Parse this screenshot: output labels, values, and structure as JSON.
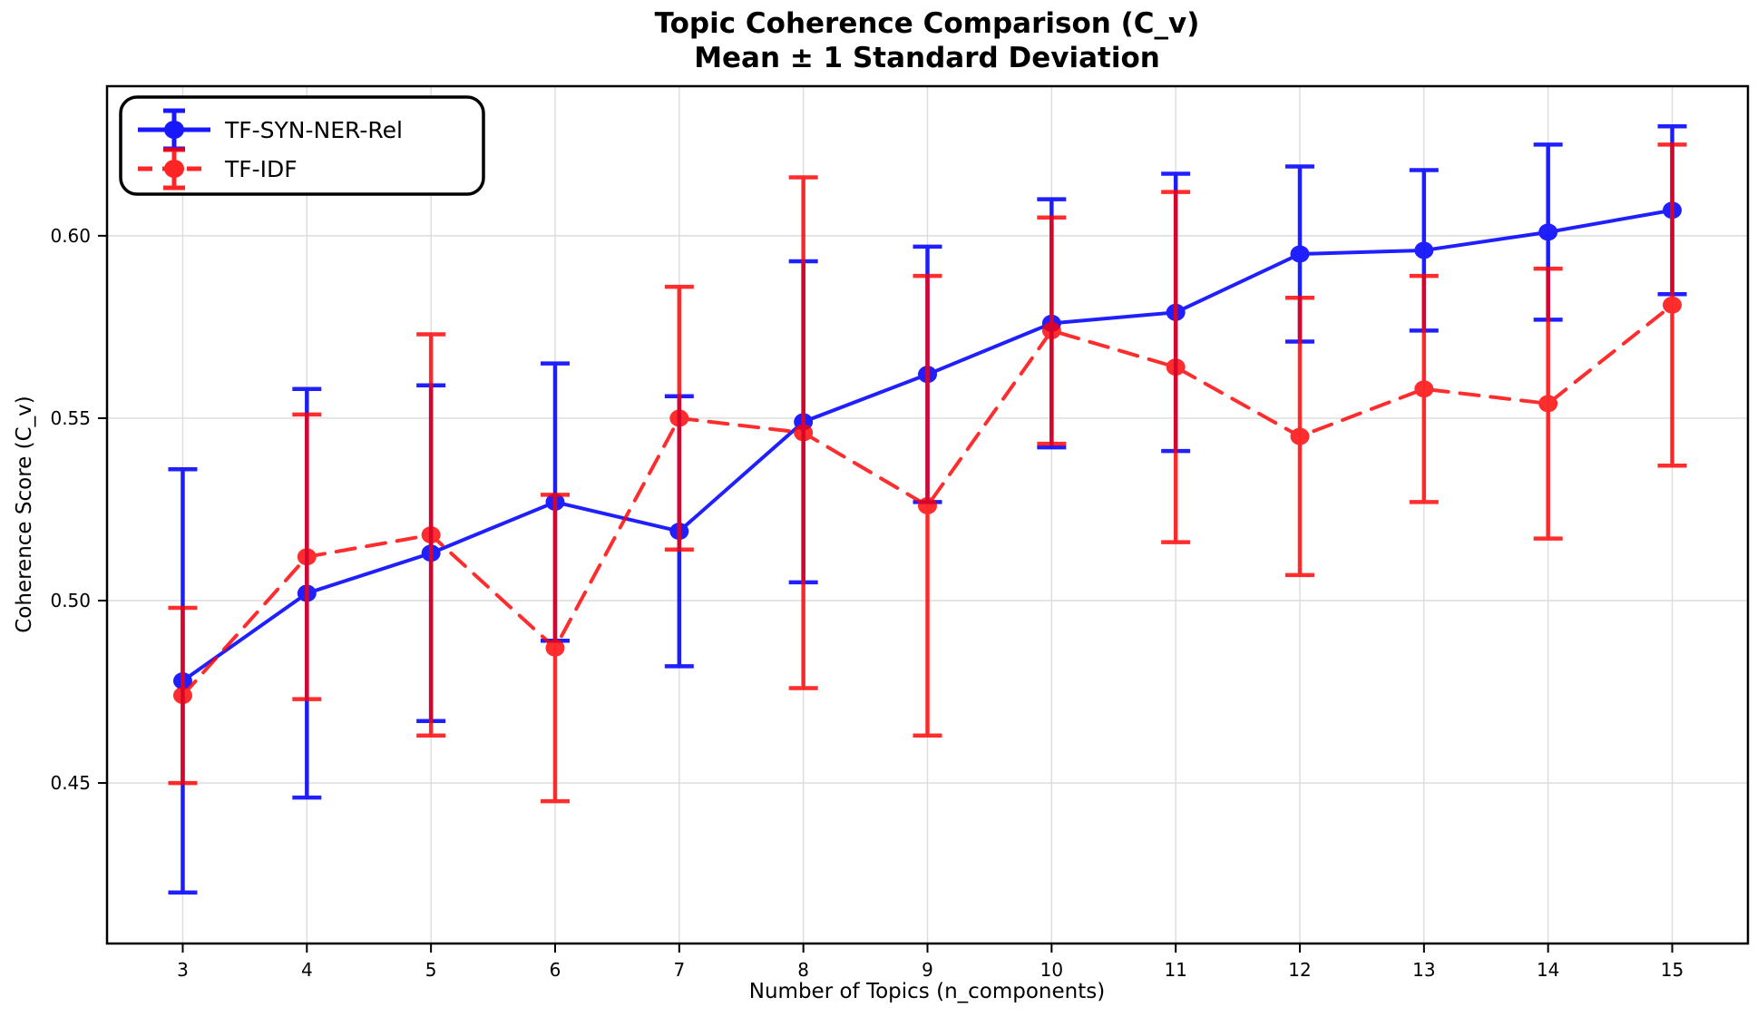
{
  "title": {
    "line1": "Topic Coherence Comparison (C_v)",
    "line2": "Mean ± 1 Standard Deviation"
  },
  "axes": {
    "xlabel": "Number of Topics (n_components)",
    "ylabel": "Coherence Score (C_v)",
    "x_ticks": [
      3,
      4,
      5,
      6,
      7,
      8,
      9,
      10,
      11,
      12,
      13,
      14,
      15
    ],
    "y_ticks": [
      0.45,
      0.5,
      0.55,
      0.6
    ],
    "y_tick_labels": [
      "0.45",
      "0.50",
      "0.55",
      "0.60"
    ]
  },
  "legend": {
    "entries": [
      {
        "label": "TF-SYN-NER-Rel"
      },
      {
        "label": "TF-IDF"
      }
    ]
  },
  "colors": {
    "blue_series": "#0000ff",
    "red_series": "#ff0000",
    "grid": "#dcdcdc",
    "spine": "#000000"
  },
  "chart_data": {
    "type": "line",
    "title": "Topic Coherence Comparison (C_v) — Mean ± 1 Standard Deviation",
    "xlabel": "Number of Topics (n_components)",
    "ylabel": "Coherence Score (C_v)",
    "x": [
      3,
      4,
      5,
      6,
      7,
      8,
      9,
      10,
      11,
      12,
      13,
      14,
      15
    ],
    "series": [
      {
        "name": "TF-SYN-NER-Rel",
        "color": "#0000ff",
        "opacity": 0.87,
        "line_style": "solid",
        "means": [
          0.478,
          0.502,
          0.513,
          0.527,
          0.519,
          0.549,
          0.562,
          0.576,
          0.579,
          0.595,
          0.596,
          0.601,
          0.607
        ],
        "std": [
          0.058,
          0.056,
          0.046,
          0.038,
          0.037,
          0.044,
          0.035,
          0.034,
          0.038,
          0.024,
          0.022,
          0.024,
          0.023
        ]
      },
      {
        "name": "TF-IDF",
        "color": "#ff0000",
        "opacity": 0.82,
        "line_style": "dashed",
        "means": [
          0.474,
          0.512,
          0.518,
          0.487,
          0.55,
          0.546,
          0.526,
          0.574,
          0.564,
          0.545,
          0.558,
          0.554,
          0.581
        ],
        "std": [
          0.024,
          0.039,
          0.055,
          0.042,
          0.036,
          0.07,
          0.063,
          0.031,
          0.048,
          0.038,
          0.031,
          0.037,
          0.044
        ]
      }
    ],
    "error_bars": "±1 standard deviation, with caps",
    "xlim": [
      2.39,
      15.61
    ],
    "ylim": [
      0.406,
      0.641
    ],
    "grid": true,
    "legend_position": "upper left"
  }
}
